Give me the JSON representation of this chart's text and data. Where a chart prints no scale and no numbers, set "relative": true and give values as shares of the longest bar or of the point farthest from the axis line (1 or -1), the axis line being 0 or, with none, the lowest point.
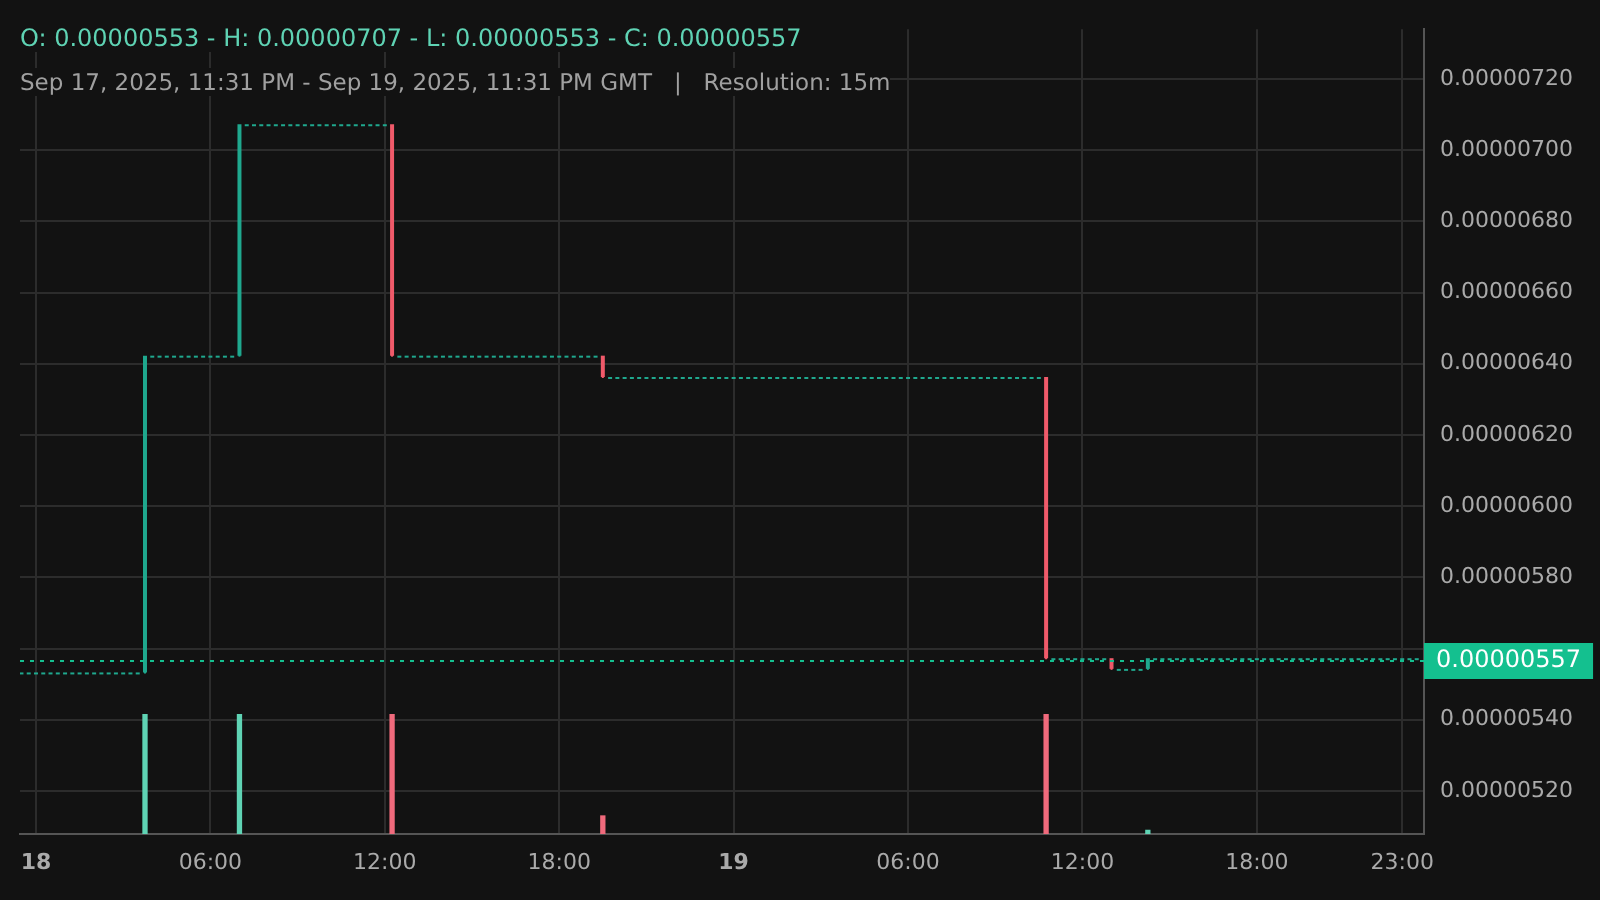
{
  "chart_data": [
    {
      "type": "candlestick",
      "title": "O: 0.00000553 - H: 0.00000707 - L: 0.00000553 - C: 0.00000557",
      "subtitle": "Sep 17, 2025, 11:31 PM - Sep 19, 2025, 11:31 PM GMT   |   Resolution: 15m",
      "xlim": [
        "2025-09-17T23:27",
        "2025-09-19T23:45"
      ],
      "xticks": [
        {
          "value": "2025-09-18T00:00",
          "label": "18"
        },
        {
          "value": "2025-09-18T06:00",
          "label": "06:00"
        },
        {
          "value": "2025-09-18T12:00",
          "label": "12:00"
        },
        {
          "value": "2025-09-18T18:00",
          "label": "18:00"
        },
        {
          "value": "2025-09-19T00:00",
          "label": "19"
        },
        {
          "value": "2025-09-19T06:00",
          "label": "06:00"
        },
        {
          "value": "2025-09-19T12:00",
          "label": "12:00"
        },
        {
          "value": "2025-09-19T18:00",
          "label": "18:00"
        },
        {
          "value": "2025-09-19T23:00",
          "label": "23:00"
        }
      ],
      "ylim": [
        5.08e-06,
        7.34e-06
      ],
      "yticks": [
        {
          "value": 5.2e-06,
          "label": "0.00000520"
        },
        {
          "value": 5.4e-06,
          "label": "0.00000540"
        },
        {
          "value": 5.6e-06,
          "label": null
        },
        {
          "value": 5.8e-06,
          "label": "0.00000580"
        },
        {
          "value": 6e-06,
          "label": "0.00000600"
        },
        {
          "value": 6.2e-06,
          "label": "0.00000620"
        },
        {
          "value": 6.4e-06,
          "label": "0.00000640"
        },
        {
          "value": 6.6e-06,
          "label": "0.00000660"
        },
        {
          "value": 6.8e-06,
          "label": "0.00000680"
        },
        {
          "value": 7e-06,
          "label": "0.00000700"
        },
        {
          "value": 7.2e-06,
          "label": "0.00000720"
        }
      ],
      "grid": true,
      "ref_lines": [
        {
          "axis": "y",
          "value": 5.57e-06,
          "label": "0.00000557",
          "color": "#14c08f",
          "line_style": "dotted"
        }
      ],
      "series": [
        {
          "color": "#1fa88e",
          "x": [
            "2025-09-17T23:30",
            "2025-09-17T23:45",
            "2025-09-18T00:00",
            "2025-09-18T00:15",
            "2025-09-18T00:30",
            "2025-09-18T00:45",
            "2025-09-18T01:00",
            "2025-09-18T01:15",
            "2025-09-18T01:30",
            "2025-09-18T01:45",
            "2025-09-18T02:00",
            "2025-09-18T02:15",
            "2025-09-18T02:30",
            "2025-09-18T02:45",
            "2025-09-18T03:00",
            "2025-09-18T03:15",
            "2025-09-18T03:30",
            "2025-09-18T03:45",
            "2025-09-18T04:00",
            "2025-09-18T04:15",
            "2025-09-18T04:30",
            "2025-09-18T04:45",
            "2025-09-18T05:00",
            "2025-09-18T05:15",
            "2025-09-18T05:30",
            "2025-09-18T05:45",
            "2025-09-18T06:00",
            "2025-09-18T06:15",
            "2025-09-18T06:30",
            "2025-09-18T06:45",
            "2025-09-18T07:00",
            "2025-09-18T07:15",
            "2025-09-18T07:30",
            "2025-09-18T07:45",
            "2025-09-18T08:00",
            "2025-09-18T08:15",
            "2025-09-18T08:30",
            "2025-09-18T08:45",
            "2025-09-18T09:00",
            "2025-09-18T09:15",
            "2025-09-18T09:30",
            "2025-09-18T09:45",
            "2025-09-18T10:00",
            "2025-09-18T10:15",
            "2025-09-18T10:30",
            "2025-09-18T10:45",
            "2025-09-18T11:00",
            "2025-09-18T11:15",
            "2025-09-18T11:30",
            "2025-09-18T11:45",
            "2025-09-18T12:00",
            "2025-09-18T12:30",
            "2025-09-18T12:45",
            "2025-09-18T13:00",
            "2025-09-18T13:15",
            "2025-09-18T13:30",
            "2025-09-18T13:45",
            "2025-09-18T14:00",
            "2025-09-18T14:15",
            "2025-09-18T14:30",
            "2025-09-18T14:45",
            "2025-09-18T15:00",
            "2025-09-18T15:15",
            "2025-09-18T15:30",
            "2025-09-18T15:45",
            "2025-09-18T16:00",
            "2025-09-18T16:15",
            "2025-09-18T16:30",
            "2025-09-18T16:45",
            "2025-09-18T17:00",
            "2025-09-18T17:15",
            "2025-09-18T17:30",
            "2025-09-18T17:45",
            "2025-09-18T18:00",
            "2025-09-18T18:15",
            "2025-09-18T18:30",
            "2025-09-18T18:45",
            "2025-09-18T19:00",
            "2025-09-18T19:15",
            "2025-09-18T19:45",
            "2025-09-18T20:00",
            "2025-09-18T20:15",
            "2025-09-18T20:30",
            "2025-09-18T20:45",
            "2025-09-18T21:00",
            "2025-09-18T21:15",
            "2025-09-18T21:30",
            "2025-09-18T21:45",
            "2025-09-18T22:00",
            "2025-09-18T22:15",
            "2025-09-18T22:30",
            "2025-09-18T22:45",
            "2025-09-18T23:00",
            "2025-09-18T23:15",
            "2025-09-18T23:30",
            "2025-09-18T23:45",
            "2025-09-19T00:00",
            "2025-09-19T00:15",
            "2025-09-19T00:30",
            "2025-09-19T00:45",
            "2025-09-19T01:00",
            "2025-09-19T01:15",
            "2025-09-19T01:30",
            "2025-09-19T01:45",
            "2025-09-19T02:00",
            "2025-09-19T02:15",
            "2025-09-19T02:30",
            "2025-09-19T02:45",
            "2025-09-19T03:00",
            "2025-09-19T03:15",
            "2025-09-19T03:30",
            "2025-09-19T03:45",
            "2025-09-19T04:00",
            "2025-09-19T04:15",
            "2025-09-19T04:30",
            "2025-09-19T04:45",
            "2025-09-19T05:00",
            "2025-09-19T05:15",
            "2025-09-19T05:30",
            "2025-09-19T05:45",
            "2025-09-19T06:00",
            "2025-09-19T06:15",
            "2025-09-19T06:30",
            "2025-09-19T06:45",
            "2025-09-19T07:00",
            "2025-09-19T07:15",
            "2025-09-19T07:30",
            "2025-09-19T07:45",
            "2025-09-19T08:00",
            "2025-09-19T08:15",
            "2025-09-19T08:30",
            "2025-09-19T08:45",
            "2025-09-19T09:00",
            "2025-09-19T09:15",
            "2025-09-19T09:30",
            "2025-09-19T09:45",
            "2025-09-19T10:00",
            "2025-09-19T10:15",
            "2025-09-19T10:30",
            "2025-09-19T11:00",
            "2025-09-19T11:15",
            "2025-09-19T11:30",
            "2025-09-19T11:45",
            "2025-09-19T12:00",
            "2025-09-19T12:15",
            "2025-09-19T12:30",
            "2025-09-19T12:45",
            "2025-09-19T13:15",
            "2025-09-19T13:30",
            "2025-09-19T13:45",
            "2025-09-19T14:00",
            "2025-09-19T14:15",
            "2025-09-19T14:30",
            "2025-09-19T14:45",
            "2025-09-19T15:00",
            "2025-09-19T15:15",
            "2025-09-19T15:30",
            "2025-09-19T15:45",
            "2025-09-19T16:00",
            "2025-09-19T16:15",
            "2025-09-19T16:30",
            "2025-09-19T16:45",
            "2025-09-19T17:00",
            "2025-09-19T17:15",
            "2025-09-19T17:30",
            "2025-09-19T17:45",
            "2025-09-19T18:00",
            "2025-09-19T18:15",
            "2025-09-19T18:30",
            "2025-09-19T18:45",
            "2025-09-19T19:00",
            "2025-09-19T19:15",
            "2025-09-19T19:30",
            "2025-09-19T19:45",
            "2025-09-19T20:00",
            "2025-09-19T20:15",
            "2025-09-19T20:30",
            "2025-09-19T20:45",
            "2025-09-19T21:00",
            "2025-09-19T21:15",
            "2025-09-19T21:30",
            "2025-09-19T21:45",
            "2025-09-19T22:00",
            "2025-09-19T22:15",
            "2025-09-19T22:30",
            "2025-09-19T22:45",
            "2025-09-19T23:00",
            "2025-09-19T23:15",
            "2025-09-19T23:30"
          ],
          "ohlc": [
            [
              5.53e-06,
              5.53e-06,
              5.53e-06,
              5.53e-06
            ],
            [
              5.53e-06,
              5.53e-06,
              5.53e-06,
              5.53e-06
            ],
            [
              5.53e-06,
              5.53e-06,
              5.53e-06,
              5.53e-06
            ],
            [
              5.53e-06,
              5.53e-06,
              5.53e-06,
              5.53e-06
            ],
            [
              5.53e-06,
              5.53e-06,
              5.53e-06,
              5.53e-06
            ],
            [
              5.53e-06,
              5.53e-06,
              5.53e-06,
              5.53e-06
            ],
            [
              5.53e-06,
              5.53e-06,
              5.53e-06,
              5.53e-06
            ],
            [
              5.53e-06,
              5.53e-06,
              5.53e-06,
              5.53e-06
            ],
            [
              5.53e-06,
              5.53e-06,
              5.53e-06,
              5.53e-06
            ],
            [
              5.53e-06,
              5.53e-06,
              5.53e-06,
              5.53e-06
            ],
            [
              5.53e-06,
              5.53e-06,
              5.53e-06,
              5.53e-06
            ],
            [
              5.53e-06,
              5.53e-06,
              5.53e-06,
              5.53e-06
            ],
            [
              5.53e-06,
              5.53e-06,
              5.53e-06,
              5.53e-06
            ],
            [
              5.53e-06,
              5.53e-06,
              5.53e-06,
              5.53e-06
            ],
            [
              5.53e-06,
              5.53e-06,
              5.53e-06,
              5.53e-06
            ],
            [
              5.53e-06,
              5.53e-06,
              5.53e-06,
              5.53e-06
            ],
            [
              5.53e-06,
              5.53e-06,
              5.53e-06,
              5.53e-06
            ],
            [
              5.53e-06,
              6.42e-06,
              5.53e-06,
              6.42e-06
            ],
            [
              6.42e-06,
              6.42e-06,
              6.42e-06,
              6.42e-06
            ],
            [
              6.42e-06,
              6.42e-06,
              6.42e-06,
              6.42e-06
            ],
            [
              6.42e-06,
              6.42e-06,
              6.42e-06,
              6.42e-06
            ],
            [
              6.42e-06,
              6.42e-06,
              6.42e-06,
              6.42e-06
            ],
            [
              6.42e-06,
              6.42e-06,
              6.42e-06,
              6.42e-06
            ],
            [
              6.42e-06,
              6.42e-06,
              6.42e-06,
              6.42e-06
            ],
            [
              6.42e-06,
              6.42e-06,
              6.42e-06,
              6.42e-06
            ],
            [
              6.42e-06,
              6.42e-06,
              6.42e-06,
              6.42e-06
            ],
            [
              6.42e-06,
              6.42e-06,
              6.42e-06,
              6.42e-06
            ],
            [
              6.42e-06,
              6.42e-06,
              6.42e-06,
              6.42e-06
            ],
            [
              6.42e-06,
              6.42e-06,
              6.42e-06,
              6.42e-06
            ],
            [
              6.42e-06,
              6.42e-06,
              6.42e-06,
              6.42e-06
            ],
            [
              6.42e-06,
              7.07e-06,
              6.42e-06,
              7.07e-06
            ],
            [
              7.07e-06,
              7.07e-06,
              7.07e-06,
              7.07e-06
            ],
            [
              7.07e-06,
              7.07e-06,
              7.07e-06,
              7.07e-06
            ],
            [
              7.07e-06,
              7.07e-06,
              7.07e-06,
              7.07e-06
            ],
            [
              7.07e-06,
              7.07e-06,
              7.07e-06,
              7.07e-06
            ],
            [
              7.07e-06,
              7.07e-06,
              7.07e-06,
              7.07e-06
            ],
            [
              7.07e-06,
              7.07e-06,
              7.07e-06,
              7.07e-06
            ],
            [
              7.07e-06,
              7.07e-06,
              7.07e-06,
              7.07e-06
            ],
            [
              7.07e-06,
              7.07e-06,
              7.07e-06,
              7.07e-06
            ],
            [
              7.07e-06,
              7.07e-06,
              7.07e-06,
              7.07e-06
            ],
            [
              7.07e-06,
              7.07e-06,
              7.07e-06,
              7.07e-06
            ],
            [
              7.07e-06,
              7.07e-06,
              7.07e-06,
              7.07e-06
            ],
            [
              7.07e-06,
              7.07e-06,
              7.07e-06,
              7.07e-06
            ],
            [
              7.07e-06,
              7.07e-06,
              7.07e-06,
              7.07e-06
            ],
            [
              7.07e-06,
              7.07e-06,
              7.07e-06,
              7.07e-06
            ],
            [
              7.07e-06,
              7.07e-06,
              7.07e-06,
              7.07e-06
            ],
            [
              7.07e-06,
              7.07e-06,
              7.07e-06,
              7.07e-06
            ],
            [
              7.07e-06,
              7.07e-06,
              7.07e-06,
              7.07e-06
            ],
            [
              7.07e-06,
              7.07e-06,
              7.07e-06,
              7.07e-06
            ],
            [
              7.07e-06,
              7.07e-06,
              7.07e-06,
              7.07e-06
            ],
            [
              7.07e-06,
              7.07e-06,
              7.07e-06,
              7.07e-06
            ],
            [
              6.42e-06,
              6.42e-06,
              6.42e-06,
              6.42e-06
            ],
            [
              6.42e-06,
              6.42e-06,
              6.42e-06,
              6.42e-06
            ],
            [
              6.42e-06,
              6.42e-06,
              6.42e-06,
              6.42e-06
            ],
            [
              6.42e-06,
              6.42e-06,
              6.42e-06,
              6.42e-06
            ],
            [
              6.42e-06,
              6.42e-06,
              6.42e-06,
              6.42e-06
            ],
            [
              6.42e-06,
              6.42e-06,
              6.42e-06,
              6.42e-06
            ],
            [
              6.42e-06,
              6.42e-06,
              6.42e-06,
              6.42e-06
            ],
            [
              6.42e-06,
              6.42e-06,
              6.42e-06,
              6.42e-06
            ],
            [
              6.42e-06,
              6.42e-06,
              6.42e-06,
              6.42e-06
            ],
            [
              6.42e-06,
              6.42e-06,
              6.42e-06,
              6.42e-06
            ],
            [
              6.42e-06,
              6.42e-06,
              6.42e-06,
              6.42e-06
            ],
            [
              6.42e-06,
              6.42e-06,
              6.42e-06,
              6.42e-06
            ],
            [
              6.42e-06,
              6.42e-06,
              6.42e-06,
              6.42e-06
            ],
            [
              6.42e-06,
              6.42e-06,
              6.42e-06,
              6.42e-06
            ],
            [
              6.42e-06,
              6.42e-06,
              6.42e-06,
              6.42e-06
            ],
            [
              6.42e-06,
              6.42e-06,
              6.42e-06,
              6.42e-06
            ],
            [
              6.42e-06,
              6.42e-06,
              6.42e-06,
              6.42e-06
            ],
            [
              6.42e-06,
              6.42e-06,
              6.42e-06,
              6.42e-06
            ],
            [
              6.42e-06,
              6.42e-06,
              6.42e-06,
              6.42e-06
            ],
            [
              6.42e-06,
              6.42e-06,
              6.42e-06,
              6.42e-06
            ],
            [
              6.42e-06,
              6.42e-06,
              6.42e-06,
              6.42e-06
            ],
            [
              6.42e-06,
              6.42e-06,
              6.42e-06,
              6.42e-06
            ],
            [
              6.42e-06,
              6.42e-06,
              6.42e-06,
              6.42e-06
            ],
            [
              6.42e-06,
              6.42e-06,
              6.42e-06,
              6.42e-06
            ],
            [
              6.42e-06,
              6.42e-06,
              6.42e-06,
              6.42e-06
            ],
            [
              6.42e-06,
              6.42e-06,
              6.42e-06,
              6.42e-06
            ],
            [
              6.42e-06,
              6.42e-06,
              6.42e-06,
              6.42e-06
            ],
            [
              6.42e-06,
              6.42e-06,
              6.42e-06,
              6.42e-06
            ],
            [
              6.36e-06,
              6.36e-06,
              6.36e-06,
              6.36e-06
            ],
            [
              6.36e-06,
              6.36e-06,
              6.36e-06,
              6.36e-06
            ],
            [
              6.36e-06,
              6.36e-06,
              6.36e-06,
              6.36e-06
            ],
            [
              6.36e-06,
              6.36e-06,
              6.36e-06,
              6.36e-06
            ],
            [
              6.36e-06,
              6.36e-06,
              6.36e-06,
              6.36e-06
            ],
            [
              6.36e-06,
              6.36e-06,
              6.36e-06,
              6.36e-06
            ],
            [
              6.36e-06,
              6.36e-06,
              6.36e-06,
              6.36e-06
            ],
            [
              6.36e-06,
              6.36e-06,
              6.36e-06,
              6.36e-06
            ],
            [
              6.36e-06,
              6.36e-06,
              6.36e-06,
              6.36e-06
            ],
            [
              6.36e-06,
              6.36e-06,
              6.36e-06,
              6.36e-06
            ],
            [
              6.36e-06,
              6.36e-06,
              6.36e-06,
              6.36e-06
            ],
            [
              6.36e-06,
              6.36e-06,
              6.36e-06,
              6.36e-06
            ],
            [
              6.36e-06,
              6.36e-06,
              6.36e-06,
              6.36e-06
            ],
            [
              6.36e-06,
              6.36e-06,
              6.36e-06,
              6.36e-06
            ],
            [
              6.36e-06,
              6.36e-06,
              6.36e-06,
              6.36e-06
            ],
            [
              6.36e-06,
              6.36e-06,
              6.36e-06,
              6.36e-06
            ],
            [
              6.36e-06,
              6.36e-06,
              6.36e-06,
              6.36e-06
            ],
            [
              6.36e-06,
              6.36e-06,
              6.36e-06,
              6.36e-06
            ],
            [
              6.36e-06,
              6.36e-06,
              6.36e-06,
              6.36e-06
            ],
            [
              6.36e-06,
              6.36e-06,
              6.36e-06,
              6.36e-06
            ],
            [
              6.36e-06,
              6.36e-06,
              6.36e-06,
              6.36e-06
            ],
            [
              6.36e-06,
              6.36e-06,
              6.36e-06,
              6.36e-06
            ],
            [
              6.36e-06,
              6.36e-06,
              6.36e-06,
              6.36e-06
            ],
            [
              6.36e-06,
              6.36e-06,
              6.36e-06,
              6.36e-06
            ],
            [
              6.36e-06,
              6.36e-06,
              6.36e-06,
              6.36e-06
            ],
            [
              6.36e-06,
              6.36e-06,
              6.36e-06,
              6.36e-06
            ],
            [
              6.36e-06,
              6.36e-06,
              6.36e-06,
              6.36e-06
            ],
            [
              6.36e-06,
              6.36e-06,
              6.36e-06,
              6.36e-06
            ],
            [
              6.36e-06,
              6.36e-06,
              6.36e-06,
              6.36e-06
            ],
            [
              6.36e-06,
              6.36e-06,
              6.36e-06,
              6.36e-06
            ],
            [
              6.36e-06,
              6.36e-06,
              6.36e-06,
              6.36e-06
            ],
            [
              6.36e-06,
              6.36e-06,
              6.36e-06,
              6.36e-06
            ],
            [
              6.36e-06,
              6.36e-06,
              6.36e-06,
              6.36e-06
            ],
            [
              6.36e-06,
              6.36e-06,
              6.36e-06,
              6.36e-06
            ],
            [
              6.36e-06,
              6.36e-06,
              6.36e-06,
              6.36e-06
            ],
            [
              6.36e-06,
              6.36e-06,
              6.36e-06,
              6.36e-06
            ],
            [
              6.36e-06,
              6.36e-06,
              6.36e-06,
              6.36e-06
            ],
            [
              6.36e-06,
              6.36e-06,
              6.36e-06,
              6.36e-06
            ],
            [
              6.36e-06,
              6.36e-06,
              6.36e-06,
              6.36e-06
            ],
            [
              6.36e-06,
              6.36e-06,
              6.36e-06,
              6.36e-06
            ],
            [
              6.36e-06,
              6.36e-06,
              6.36e-06,
              6.36e-06
            ],
            [
              6.36e-06,
              6.36e-06,
              6.36e-06,
              6.36e-06
            ],
            [
              6.36e-06,
              6.36e-06,
              6.36e-06,
              6.36e-06
            ],
            [
              6.36e-06,
              6.36e-06,
              6.36e-06,
              6.36e-06
            ],
            [
              6.36e-06,
              6.36e-06,
              6.36e-06,
              6.36e-06
            ],
            [
              6.36e-06,
              6.36e-06,
              6.36e-06,
              6.36e-06
            ],
            [
              6.36e-06,
              6.36e-06,
              6.36e-06,
              6.36e-06
            ],
            [
              6.36e-06,
              6.36e-06,
              6.36e-06,
              6.36e-06
            ],
            [
              6.36e-06,
              6.36e-06,
              6.36e-06,
              6.36e-06
            ],
            [
              6.36e-06,
              6.36e-06,
              6.36e-06,
              6.36e-06
            ],
            [
              6.36e-06,
              6.36e-06,
              6.36e-06,
              6.36e-06
            ],
            [
              6.36e-06,
              6.36e-06,
              6.36e-06,
              6.36e-06
            ],
            [
              6.36e-06,
              6.36e-06,
              6.36e-06,
              6.36e-06
            ],
            [
              6.36e-06,
              6.36e-06,
              6.36e-06,
              6.36e-06
            ],
            [
              6.36e-06,
              6.36e-06,
              6.36e-06,
              6.36e-06
            ],
            [
              6.36e-06,
              6.36e-06,
              6.36e-06,
              6.36e-06
            ],
            [
              6.36e-06,
              6.36e-06,
              6.36e-06,
              6.36e-06
            ],
            [
              6.36e-06,
              6.36e-06,
              6.36e-06,
              6.36e-06
            ],
            [
              6.36e-06,
              6.36e-06,
              6.36e-06,
              6.36e-06
            ],
            [
              6.36e-06,
              6.36e-06,
              6.36e-06,
              6.36e-06
            ],
            [
              5.57e-06,
              5.57e-06,
              5.57e-06,
              5.57e-06
            ],
            [
              5.57e-06,
              5.57e-06,
              5.57e-06,
              5.57e-06
            ],
            [
              5.57e-06,
              5.57e-06,
              5.57e-06,
              5.57e-06
            ],
            [
              5.57e-06,
              5.57e-06,
              5.57e-06,
              5.57e-06
            ],
            [
              5.57e-06,
              5.57e-06,
              5.57e-06,
              5.57e-06
            ],
            [
              5.57e-06,
              5.57e-06,
              5.57e-06,
              5.57e-06
            ],
            [
              5.57e-06,
              5.57e-06,
              5.57e-06,
              5.57e-06
            ],
            [
              5.57e-06,
              5.57e-06,
              5.57e-06,
              5.57e-06
            ],
            [
              5.54e-06,
              5.54e-06,
              5.54e-06,
              5.54e-06
            ],
            [
              5.54e-06,
              5.54e-06,
              5.54e-06,
              5.54e-06
            ],
            [
              5.54e-06,
              5.54e-06,
              5.54e-06,
              5.54e-06
            ],
            [
              5.54e-06,
              5.54e-06,
              5.54e-06,
              5.54e-06
            ],
            [
              5.54e-06,
              5.57e-06,
              5.54e-06,
              5.57e-06
            ],
            [
              5.57e-06,
              5.57e-06,
              5.57e-06,
              5.57e-06
            ],
            [
              5.57e-06,
              5.57e-06,
              5.57e-06,
              5.57e-06
            ],
            [
              5.57e-06,
              5.57e-06,
              5.57e-06,
              5.57e-06
            ],
            [
              5.57e-06,
              5.57e-06,
              5.57e-06,
              5.57e-06
            ],
            [
              5.57e-06,
              5.57e-06,
              5.57e-06,
              5.57e-06
            ],
            [
              5.57e-06,
              5.57e-06,
              5.57e-06,
              5.57e-06
            ],
            [
              5.57e-06,
              5.57e-06,
              5.57e-06,
              5.57e-06
            ],
            [
              5.57e-06,
              5.57e-06,
              5.57e-06,
              5.57e-06
            ],
            [
              5.57e-06,
              5.57e-06,
              5.57e-06,
              5.57e-06
            ],
            [
              5.57e-06,
              5.57e-06,
              5.57e-06,
              5.57e-06
            ],
            [
              5.57e-06,
              5.57e-06,
              5.57e-06,
              5.57e-06
            ],
            [
              5.57e-06,
              5.57e-06,
              5.57e-06,
              5.57e-06
            ],
            [
              5.57e-06,
              5.57e-06,
              5.57e-06,
              5.57e-06
            ],
            [
              5.57e-06,
              5.57e-06,
              5.57e-06,
              5.57e-06
            ],
            [
              5.57e-06,
              5.57e-06,
              5.57e-06,
              5.57e-06
            ],
            [
              5.57e-06,
              5.57e-06,
              5.57e-06,
              5.57e-06
            ],
            [
              5.57e-06,
              5.57e-06,
              5.57e-06,
              5.57e-06
            ],
            [
              5.57e-06,
              5.57e-06,
              5.57e-06,
              5.57e-06
            ],
            [
              5.57e-06,
              5.57e-06,
              5.57e-06,
              5.57e-06
            ],
            [
              5.57e-06,
              5.57e-06,
              5.57e-06,
              5.57e-06
            ],
            [
              5.57e-06,
              5.57e-06,
              5.57e-06,
              5.57e-06
            ],
            [
              5.57e-06,
              5.57e-06,
              5.57e-06,
              5.57e-06
            ],
            [
              5.57e-06,
              5.57e-06,
              5.57e-06,
              5.57e-06
            ],
            [
              5.57e-06,
              5.57e-06,
              5.57e-06,
              5.57e-06
            ],
            [
              5.57e-06,
              5.57e-06,
              5.57e-06,
              5.57e-06
            ],
            [
              5.57e-06,
              5.57e-06,
              5.57e-06,
              5.57e-06
            ],
            [
              5.57e-06,
              5.57e-06,
              5.57e-06,
              5.57e-06
            ],
            [
              5.57e-06,
              5.57e-06,
              5.57e-06,
              5.57e-06
            ],
            [
              5.57e-06,
              5.57e-06,
              5.57e-06,
              5.57e-06
            ],
            [
              5.57e-06,
              5.57e-06,
              5.57e-06,
              5.57e-06
            ],
            [
              5.57e-06,
              5.57e-06,
              5.57e-06,
              5.57e-06
            ],
            [
              5.57e-06,
              5.57e-06,
              5.57e-06,
              5.57e-06
            ],
            [
              5.57e-06,
              5.57e-06,
              5.57e-06,
              5.57e-06
            ],
            [
              5.57e-06,
              5.57e-06,
              5.57e-06,
              5.57e-06
            ],
            [
              5.57e-06,
              5.57e-06,
              5.57e-06,
              5.57e-06
            ],
            [
              5.57e-06,
              5.57e-06,
              5.57e-06,
              5.57e-06
            ],
            [
              5.57e-06,
              5.57e-06,
              5.57e-06,
              5.57e-06
            ]
          ]
        },
        {
          "color": "#f05a6a",
          "x": [
            "2025-09-18T12:15",
            "2025-09-18T19:30",
            "2025-09-19T10:45",
            "2025-09-19T13:00"
          ],
          "ohlc": [
            [
              7.07e-06,
              7.07e-06,
              6.42e-06,
              6.42e-06
            ],
            [
              6.42e-06,
              6.42e-06,
              6.36e-06,
              6.36e-06
            ],
            [
              6.36e-06,
              6.36e-06,
              5.57e-06,
              5.57e-06
            ],
            [
              5.57e-06,
              5.57e-06,
              5.54e-06,
              5.54e-06
            ]
          ]
        }
      ]
    },
    {
      "type": "bar",
      "relative": true,
      "tick_labels": false,
      "xlim": [
        "2025-09-17T23:27",
        "2025-09-19T23:45"
      ],
      "x": [
        "2025-09-18T03:45",
        "2025-09-18T07:00",
        "2025-09-18T12:15",
        "2025-09-18T19:30",
        "2025-09-19T10:45",
        "2025-09-19T14:15"
      ],
      "values": [
        1,
        1,
        1,
        0.15,
        1,
        0.03
      ],
      "colors": [
        "#5fd3b4",
        "#5fd3b4",
        "#f06a7c",
        "#f06a7c",
        "#f06a7c",
        "#5fd3b4"
      ]
    }
  ]
}
